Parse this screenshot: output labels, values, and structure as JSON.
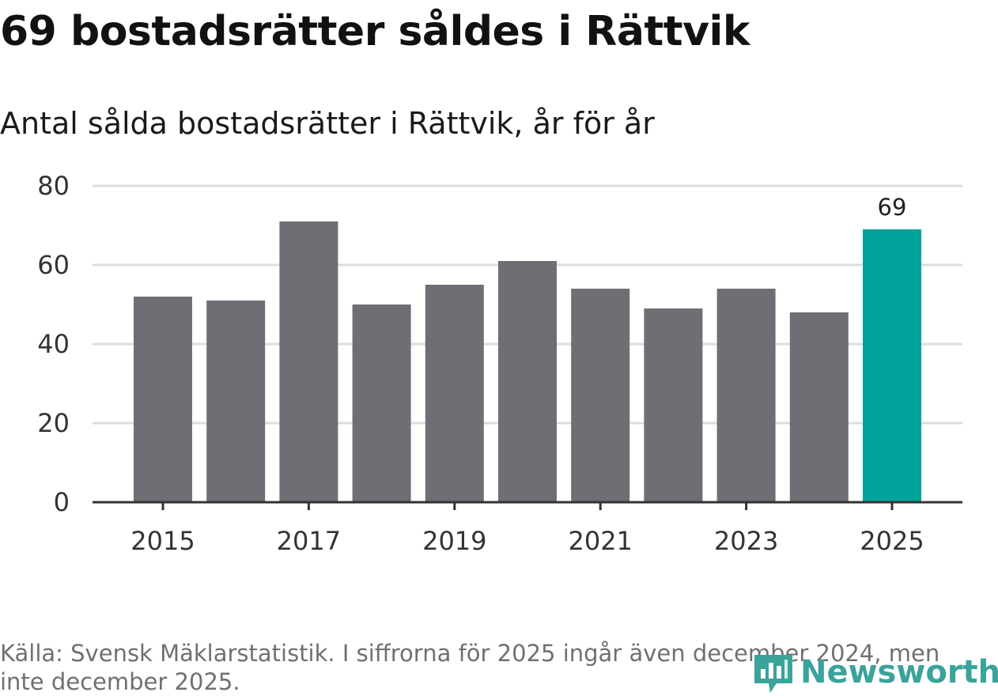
{
  "header": {
    "title": "69 bostadsrätter såldes i Rättvik",
    "subtitle": "Antal sålda bostadsrätter i Rättvik, år för år"
  },
  "chart_data": {
    "type": "bar",
    "categories": [
      "2015",
      "2016",
      "2017",
      "2018",
      "2019",
      "2020",
      "2021",
      "2022",
      "2023",
      "2024",
      "2025"
    ],
    "values": [
      52,
      51,
      71,
      50,
      55,
      61,
      54,
      49,
      54,
      48,
      69
    ],
    "x_tick_labels": [
      "2015",
      "2017",
      "2019",
      "2021",
      "2023",
      "2025"
    ],
    "y_ticks": [
      0,
      20,
      40,
      60,
      80
    ],
    "ylim": [
      0,
      80
    ],
    "grid": true,
    "highlight_index": 10,
    "highlight_label": "69",
    "colors": {
      "bar": "#6f6e74",
      "highlight": "#00a39a",
      "grid": "#dddddd",
      "axis": "#333333"
    }
  },
  "footer": {
    "source": "Källa: Svensk Mäklarstatistik. I siffrorna för 2025 ingår även december 2024, men inte december 2025."
  },
  "logo": {
    "text": "Newsworthy",
    "icon": "newsworthy-logo-icon",
    "color": "#3aa39a"
  }
}
